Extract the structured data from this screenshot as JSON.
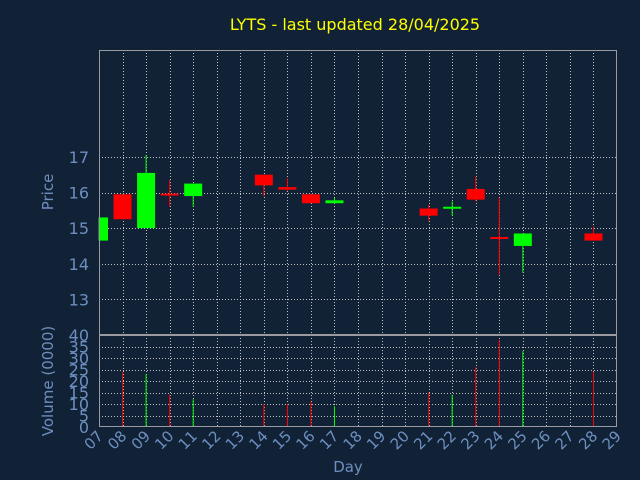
{
  "chart_data": {
    "type": "candlestick",
    "title": "LYTS - last updated 28/04/2025",
    "xlabel": "Day",
    "price_panel": {
      "ylabel": "Price",
      "yticks": [
        "13",
        "14",
        "15",
        "16",
        "17"
      ],
      "ylim": [
        12,
        20
      ]
    },
    "volume_panel": {
      "ylabel": "Volume (0000)",
      "yticks": [
        "0",
        "5",
        "10",
        "15",
        "20",
        "25",
        "30",
        "35",
        "40"
      ],
      "ylim": [
        0,
        40
      ]
    },
    "xticks": [
      "07",
      "08",
      "09",
      "10",
      "11",
      "12",
      "13",
      "14",
      "15",
      "16",
      "17",
      "18",
      "19",
      "20",
      "21",
      "22",
      "23",
      "24",
      "25",
      "26",
      "27",
      "28",
      "29"
    ],
    "candles": [
      {
        "day": 7,
        "open": 14.65,
        "high": 15.3,
        "low": 14.65,
        "close": 15.3,
        "volume": 0
      },
      {
        "day": 8,
        "open": 15.95,
        "high": 15.95,
        "low": 15.25,
        "close": 15.25,
        "volume": 24
      },
      {
        "day": 9,
        "open": 15.0,
        "high": 17.05,
        "low": 15.0,
        "close": 16.55,
        "volume": 23
      },
      {
        "day": 10,
        "open": 15.97,
        "high": 16.35,
        "low": 15.6,
        "close": 15.95,
        "volume": 14
      },
      {
        "day": 11,
        "open": 15.9,
        "high": 16.25,
        "low": 15.6,
        "close": 16.25,
        "volume": 12
      },
      {
        "day": 14,
        "open": 16.5,
        "high": 16.5,
        "low": 15.9,
        "close": 16.2,
        "volume": 10
      },
      {
        "day": 15,
        "open": 16.15,
        "high": 16.4,
        "low": 16.05,
        "close": 16.08,
        "volume": 10
      },
      {
        "day": 16,
        "open": 15.95,
        "high": 15.95,
        "low": 15.7,
        "close": 15.7,
        "volume": 11
      },
      {
        "day": 17,
        "open": 15.7,
        "high": 15.85,
        "low": 15.7,
        "close": 15.78,
        "volume": 9
      },
      {
        "day": 21,
        "open": 15.55,
        "high": 15.65,
        "low": 15.2,
        "close": 15.35,
        "volume": 15
      },
      {
        "day": 22,
        "open": 15.57,
        "high": 15.75,
        "low": 15.35,
        "close": 15.6,
        "volume": 14
      },
      {
        "day": 23,
        "open": 16.1,
        "high": 16.45,
        "low": 15.75,
        "close": 15.8,
        "volume": 26
      },
      {
        "day": 24,
        "open": 14.75,
        "high": 15.85,
        "low": 13.7,
        "close": 14.7,
        "volume": 38
      },
      {
        "day": 25,
        "open": 14.5,
        "high": 14.85,
        "low": 13.75,
        "close": 14.85,
        "volume": 33
      },
      {
        "day": 28,
        "open": 14.85,
        "high": 15.05,
        "low": 14.65,
        "close": 14.65,
        "volume": 24
      }
    ],
    "colors": {
      "background": "#112236",
      "plot_border": "#9a9aa0",
      "grid": "#c0c0c0",
      "axis_text": "#6d8fbf",
      "title_text": "#ffff00",
      "up": "#00ff00",
      "down": "#ff0000"
    }
  }
}
